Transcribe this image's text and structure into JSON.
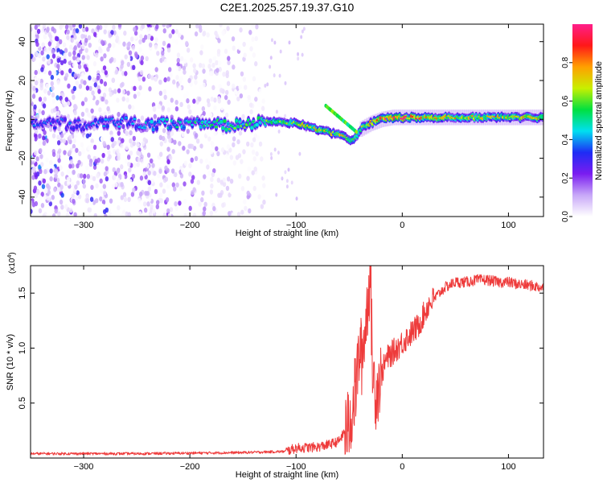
{
  "figure": {
    "title": "C2E1.2025.257.19.37.G10"
  },
  "chart_data": [
    {
      "type": "heatmap",
      "xlabel": "Height of straight line (km)",
      "ylabel": "Frequency (Hz)",
      "xlim": [
        -350,
        133
      ],
      "ylim": [
        -50,
        49
      ],
      "xticks": [
        -300,
        -200,
        -100,
        0,
        100
      ],
      "yticks": [
        -40,
        -20,
        0,
        20,
        40
      ],
      "grid": false,
      "colorbar": {
        "label": "Normalized spectral amplitude",
        "range": [
          0.0,
          1.0
        ],
        "ticks": [
          0.0,
          0.2,
          0.4,
          0.6,
          0.8
        ],
        "colors": [
          "#ffffff",
          "#c8a8f8",
          "#7a1cf0",
          "#1e2cf5",
          "#00e0f0",
          "#00e040",
          "#c8f000",
          "#ffa000",
          "#ff1818",
          "#ff1e8a"
        ]
      },
      "series": [
        {
          "name": "",
          "description_points": [
            [
              -340,
              -2,
              0.35
            ],
            [
              -320,
              -2,
              0.35
            ],
            [
              -300,
              -3,
              0.35
            ],
            [
              -280,
              -2,
              0.4
            ],
            [
              -260,
              -1,
              0.4
            ],
            [
              -240,
              -3,
              0.45
            ],
            [
              -220,
              -2,
              0.45
            ],
            [
              -200,
              -2,
              0.5
            ],
            [
              -180,
              -3,
              0.55
            ],
            [
              -160,
              -3,
              0.55
            ],
            [
              -140,
              -2,
              0.6
            ],
            [
              -120,
              -1,
              0.6
            ],
            [
              -100,
              -2,
              0.65
            ],
            [
              -80,
              -5,
              0.7
            ],
            [
              -60,
              -8,
              0.7
            ],
            [
              -45,
              -11,
              0.65
            ],
            [
              -40,
              -5,
              0.6
            ],
            [
              -30,
              -2,
              0.75
            ],
            [
              -20,
              0,
              0.85
            ],
            [
              -10,
              1,
              0.95
            ],
            [
              0,
              1,
              0.9
            ],
            [
              20,
              1,
              0.8
            ],
            [
              40,
              1,
              0.75
            ],
            [
              60,
              1,
              0.7
            ],
            [
              80,
              1,
              0.7
            ],
            [
              100,
              1,
              0.72
            ],
            [
              120,
              1,
              0.7
            ],
            [
              133,
              1,
              0.7
            ]
          ]
        }
      ]
    },
    {
      "type": "line",
      "xlabel": "Height of straight line (km)",
      "ylabel": "SNR (10 * v/v)",
      "yscale_label": "(x10",
      "yscale_exp": "4",
      "yscale_close": ")",
      "xlim": [
        -350,
        133
      ],
      "ylim": [
        0,
        1.75
      ],
      "xticks": [
        -300,
        -200,
        -100,
        0,
        100
      ],
      "yticks": [
        0.5,
        1.0,
        1.5
      ],
      "ytick_labels": [
        "0.5",
        "1.0",
        "1.5"
      ],
      "grid": false,
      "color": "#ee3b3b",
      "x": [
        -350,
        -300,
        -250,
        -200,
        -150,
        -110,
        -100,
        -80,
        -70,
        -60,
        -50,
        -45,
        -42,
        -40,
        -38,
        -36,
        -34,
        -32,
        -30,
        -28,
        -25,
        -20,
        -15,
        -10,
        -5,
        0,
        5,
        10,
        15,
        20,
        25,
        30,
        35,
        40,
        50,
        60,
        70,
        80,
        90,
        100,
        110,
        120,
        133
      ],
      "values": [
        0.04,
        0.04,
        0.04,
        0.045,
        0.05,
        0.06,
        0.09,
        0.1,
        0.12,
        0.15,
        0.3,
        0.55,
        0.8,
        1.0,
        0.9,
        1.1,
        1.25,
        1.5,
        1.7,
        0.8,
        0.6,
        0.75,
        0.9,
        0.95,
        1.0,
        1.05,
        1.1,
        1.15,
        1.2,
        1.3,
        1.4,
        1.45,
        1.5,
        1.55,
        1.6,
        1.6,
        1.62,
        1.62,
        1.6,
        1.6,
        1.58,
        1.57,
        1.55
      ]
    }
  ]
}
